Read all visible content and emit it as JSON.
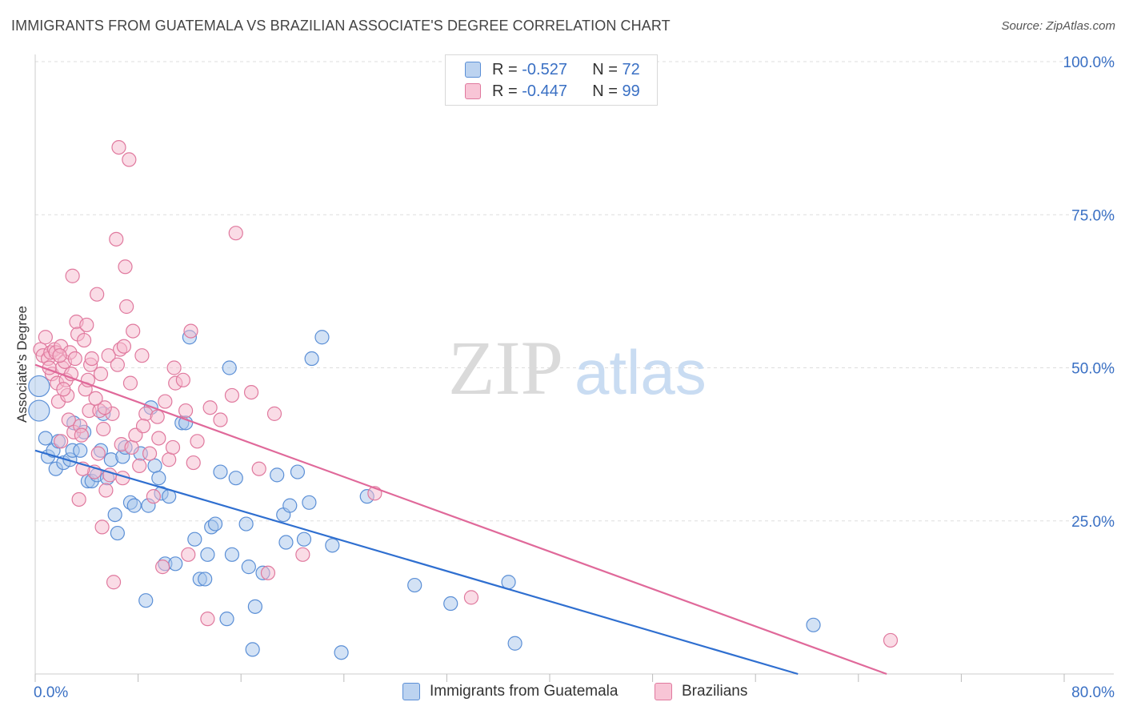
{
  "header": {
    "title": "IMMIGRANTS FROM GUATEMALA VS BRAZILIAN ASSOCIATE'S DEGREE CORRELATION CHART",
    "source": "Source: ZipAtlas.com"
  },
  "watermark": {
    "zip": "ZIP",
    "atlas": "atlas"
  },
  "stats": {
    "r_label": "R =",
    "n_label": "N =",
    "guatemala": {
      "r": "-0.527",
      "n": "72"
    },
    "brazilians": {
      "r": "-0.447",
      "n": "99"
    }
  },
  "legend": {
    "guatemala": "Immigrants from Guatemala",
    "brazilians": "Brazilians"
  },
  "colors": {
    "blue_fill": "#a8c6ec",
    "blue_stroke": "#5b8fd6",
    "blue_line": "#2f6fd0",
    "pink_fill": "#f6b9ce",
    "pink_stroke": "#e0799e",
    "pink_line": "#e0699a",
    "axis_text": "#3a70c4",
    "grid": "#dddddd"
  },
  "chart_data": {
    "type": "scatter",
    "title": "IMMIGRANTS FROM GUATEMALA VS BRAZILIAN ASSOCIATE'S DEGREE CORRELATION CHART",
    "xlabel": "",
    "ylabel": "Associate's Degree",
    "xlim": [
      0,
      80
    ],
    "ylim": [
      0,
      100
    ],
    "x_tick_labels": [
      "0.0%",
      "80.0%"
    ],
    "y_tick_labels": [
      "100.0%",
      "75.0%",
      "50.0%",
      "25.0%"
    ],
    "y_ticks": [
      100,
      75,
      50,
      25
    ],
    "grid": true,
    "legend_position": "bottom-center",
    "series": [
      {
        "name": "Immigrants from Guatemala",
        "color": "#5b8fd6",
        "trend": {
          "x": [
            0,
            59.3
          ],
          "y": [
            36.5,
            0
          ]
        },
        "points": [
          [
            0.3,
            47.0
          ],
          [
            0.3,
            43.0
          ],
          [
            0.8,
            38.5
          ],
          [
            1.0,
            35.5
          ],
          [
            1.4,
            36.5
          ],
          [
            1.6,
            33.5
          ],
          [
            1.8,
            38.0
          ],
          [
            2.2,
            34.5
          ],
          [
            2.7,
            35.0
          ],
          [
            2.9,
            36.5
          ],
          [
            3.0,
            41.0
          ],
          [
            3.5,
            36.5
          ],
          [
            3.8,
            39.5
          ],
          [
            4.1,
            31.5
          ],
          [
            4.4,
            31.5
          ],
          [
            4.8,
            32.5
          ],
          [
            5.1,
            36.5
          ],
          [
            5.3,
            42.5
          ],
          [
            5.6,
            32.0
          ],
          [
            5.9,
            35.0
          ],
          [
            6.2,
            26.0
          ],
          [
            6.4,
            23.0
          ],
          [
            6.8,
            35.5
          ],
          [
            7.0,
            37.0
          ],
          [
            7.4,
            28.0
          ],
          [
            7.7,
            27.5
          ],
          [
            8.2,
            36.0
          ],
          [
            8.6,
            12.0
          ],
          [
            8.8,
            27.5
          ],
          [
            9.0,
            43.5
          ],
          [
            9.3,
            34.0
          ],
          [
            9.6,
            32.0
          ],
          [
            9.8,
            29.5
          ],
          [
            10.1,
            18.0
          ],
          [
            10.4,
            29.0
          ],
          [
            10.9,
            18.0
          ],
          [
            11.4,
            41.0
          ],
          [
            11.7,
            41.0
          ],
          [
            12.0,
            55.0
          ],
          [
            12.4,
            22.0
          ],
          [
            12.8,
            15.5
          ],
          [
            13.2,
            15.5
          ],
          [
            13.4,
            19.5
          ],
          [
            13.7,
            24.0
          ],
          [
            14.0,
            24.5
          ],
          [
            14.4,
            33.0
          ],
          [
            14.9,
            9.0
          ],
          [
            15.1,
            50.0
          ],
          [
            15.3,
            19.5
          ],
          [
            15.6,
            32.0
          ],
          [
            16.4,
            24.5
          ],
          [
            16.6,
            17.5
          ],
          [
            16.9,
            4.0
          ],
          [
            17.1,
            11.0
          ],
          [
            17.7,
            16.5
          ],
          [
            18.8,
            32.5
          ],
          [
            19.3,
            26.0
          ],
          [
            19.5,
            21.5
          ],
          [
            19.8,
            27.5
          ],
          [
            20.4,
            33.0
          ],
          [
            20.9,
            22.0
          ],
          [
            21.3,
            28.0
          ],
          [
            21.5,
            51.5
          ],
          [
            22.3,
            55.0
          ],
          [
            23.1,
            21.0
          ],
          [
            23.8,
            3.5
          ],
          [
            25.8,
            29.0
          ],
          [
            29.5,
            14.5
          ],
          [
            32.3,
            11.5
          ],
          [
            37.3,
            5.0
          ],
          [
            36.8,
            15.0
          ],
          [
            60.5,
            8.0
          ]
        ]
      },
      {
        "name": "Brazilians",
        "color": "#e0799e",
        "trend": {
          "x": [
            0,
            66.2
          ],
          "y": [
            50.5,
            0
          ]
        },
        "points": [
          [
            0.4,
            53.0
          ],
          [
            0.6,
            52.0
          ],
          [
            0.8,
            55.0
          ],
          [
            1.0,
            51.5
          ],
          [
            1.2,
            52.5
          ],
          [
            1.3,
            49.0
          ],
          [
            1.5,
            53.0
          ],
          [
            1.6,
            52.5
          ],
          [
            1.7,
            47.5
          ],
          [
            1.8,
            44.5
          ],
          [
            2.0,
            53.5
          ],
          [
            2.1,
            50.0
          ],
          [
            2.3,
            51.0
          ],
          [
            2.4,
            48.0
          ],
          [
            2.5,
            45.5
          ],
          [
            2.6,
            41.5
          ],
          [
            2.7,
            52.5
          ],
          [
            2.8,
            49.0
          ],
          [
            2.9,
            65.0
          ],
          [
            3.0,
            39.5
          ],
          [
            3.2,
            57.5
          ],
          [
            3.3,
            55.5
          ],
          [
            3.4,
            28.5
          ],
          [
            3.5,
            40.5
          ],
          [
            3.6,
            39.0
          ],
          [
            3.8,
            54.5
          ],
          [
            3.9,
            46.5
          ],
          [
            4.0,
            57.0
          ],
          [
            4.2,
            43.0
          ],
          [
            4.3,
            50.5
          ],
          [
            4.4,
            51.5
          ],
          [
            4.6,
            33.0
          ],
          [
            4.8,
            62.0
          ],
          [
            4.9,
            36.0
          ],
          [
            5.0,
            43.0
          ],
          [
            5.1,
            49.0
          ],
          [
            5.2,
            24.0
          ],
          [
            5.3,
            40.0
          ],
          [
            5.5,
            30.0
          ],
          [
            5.7,
            52.0
          ],
          [
            5.8,
            32.5
          ],
          [
            6.0,
            42.5
          ],
          [
            6.1,
            15.0
          ],
          [
            6.3,
            71.0
          ],
          [
            6.4,
            50.5
          ],
          [
            6.5,
            86.0
          ],
          [
            6.6,
            53.0
          ],
          [
            6.7,
            37.5
          ],
          [
            6.8,
            32.0
          ],
          [
            7.0,
            66.5
          ],
          [
            7.1,
            60.0
          ],
          [
            7.3,
            84.0
          ],
          [
            7.4,
            47.5
          ],
          [
            7.5,
            37.0
          ],
          [
            7.6,
            56.0
          ],
          [
            7.8,
            39.0
          ],
          [
            8.1,
            34.0
          ],
          [
            8.3,
            52.0
          ],
          [
            8.6,
            42.5
          ],
          [
            8.9,
            36.0
          ],
          [
            9.2,
            29.0
          ],
          [
            9.6,
            38.5
          ],
          [
            9.9,
            17.5
          ],
          [
            10.1,
            44.5
          ],
          [
            10.4,
            35.0
          ],
          [
            10.7,
            37.0
          ],
          [
            10.9,
            47.5
          ],
          [
            11.5,
            48.0
          ],
          [
            11.7,
            43.0
          ],
          [
            11.9,
            19.5
          ],
          [
            12.1,
            56.0
          ],
          [
            12.3,
            34.5
          ],
          [
            13.4,
            9.0
          ],
          [
            13.6,
            43.5
          ],
          [
            14.4,
            41.5
          ],
          [
            15.3,
            45.5
          ],
          [
            15.6,
            72.0
          ],
          [
            16.8,
            46.0
          ],
          [
            17.4,
            33.5
          ],
          [
            18.1,
            16.5
          ],
          [
            18.6,
            42.5
          ],
          [
            20.8,
            19.5
          ],
          [
            26.4,
            29.5
          ],
          [
            33.9,
            12.5
          ],
          [
            66.5,
            5.5
          ],
          [
            4.1,
            48.0
          ],
          [
            2.2,
            46.5
          ],
          [
            1.9,
            52.0
          ],
          [
            3.1,
            51.5
          ],
          [
            5.4,
            43.5
          ],
          [
            6.9,
            53.5
          ],
          [
            8.4,
            40.5
          ],
          [
            9.5,
            42.0
          ],
          [
            10.8,
            50.0
          ],
          [
            12.6,
            38.0
          ],
          [
            1.1,
            50.0
          ],
          [
            2.0,
            38.0
          ],
          [
            3.7,
            33.5
          ],
          [
            4.7,
            45.0
          ]
        ]
      }
    ]
  }
}
